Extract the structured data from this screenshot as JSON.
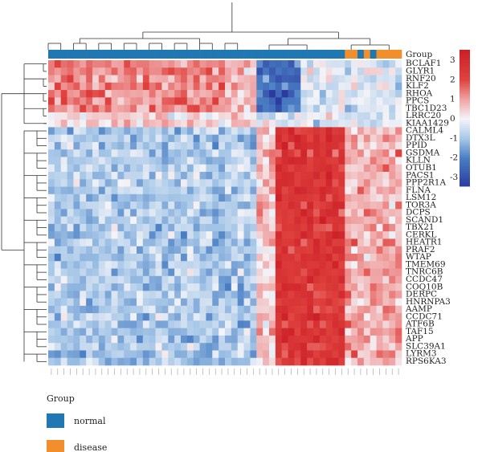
{
  "chart_data": {
    "type": "heatmap",
    "title": "",
    "annotation_label": "Group",
    "rows": [
      "BCLAF1",
      "GLYR1",
      "RNF20",
      "KLF2",
      "RHOA",
      "PPCS",
      "TBC1D23",
      "LRRC20",
      "KIAA1429",
      "CALML4",
      "DTX3L",
      "PPID",
      "GSDMA",
      "KLLN",
      "OTUB1",
      "PACS1",
      "PPP2R1A",
      "FLNA",
      "LSM12",
      "TOR3A",
      "DCPS",
      "SCAND1",
      "TBX21",
      "CERKL",
      "HEATR1",
      "PRAF2",
      "WTAP",
      "TMEM69",
      "TNRC6B",
      "CCDC47",
      "COQ10B",
      "DERPC",
      "HNRNPA3",
      "AAMP",
      "CCDC71",
      "ATF6B",
      "TAF15",
      "APP",
      "SLC39A1",
      "LYRM3",
      "RPS6KA3"
    ],
    "num_columns": 56,
    "column_groups": [
      "normal",
      "normal",
      "normal",
      "normal",
      "normal",
      "normal",
      "normal",
      "normal",
      "normal",
      "normal",
      "normal",
      "normal",
      "normal",
      "normal",
      "normal",
      "normal",
      "normal",
      "normal",
      "normal",
      "normal",
      "normal",
      "normal",
      "normal",
      "normal",
      "normal",
      "normal",
      "normal",
      "normal",
      "normal",
      "normal",
      "normal",
      "normal",
      "normal",
      "normal",
      "normal",
      "normal",
      "normal",
      "normal",
      "normal",
      "normal",
      "normal",
      "normal",
      "normal",
      "normal",
      "normal",
      "normal",
      "normal",
      "disease",
      "disease",
      "normal",
      "disease",
      "normal",
      "disease",
      "disease",
      "disease",
      "disease"
    ],
    "row_cluster_split_after": 9,
    "color_scale": {
      "min": -3.5,
      "max": 3.5,
      "stops": [
        [
          -3.5,
          "#2b3a9e"
        ],
        [
          -2,
          "#4a7fc4"
        ],
        [
          -1,
          "#a8c8e8"
        ],
        [
          0,
          "#f4f4f8"
        ],
        [
          1,
          "#f0a3a3"
        ],
        [
          2,
          "#e0433f"
        ],
        [
          3.5,
          "#cc1f27"
        ]
      ]
    },
    "colorbar_ticks": [
      "3",
      "2",
      "1",
      "0",
      "-1",
      "-2",
      "-3"
    ],
    "colorbar_tick_values": [
      3,
      2,
      1,
      0,
      -1,
      -2,
      -3
    ],
    "legend": {
      "title": "Group",
      "items": [
        {
          "label": "normal",
          "color": "#1f77b4"
        },
        {
          "label": "disease",
          "color": "#f28e2b"
        }
      ]
    }
  }
}
